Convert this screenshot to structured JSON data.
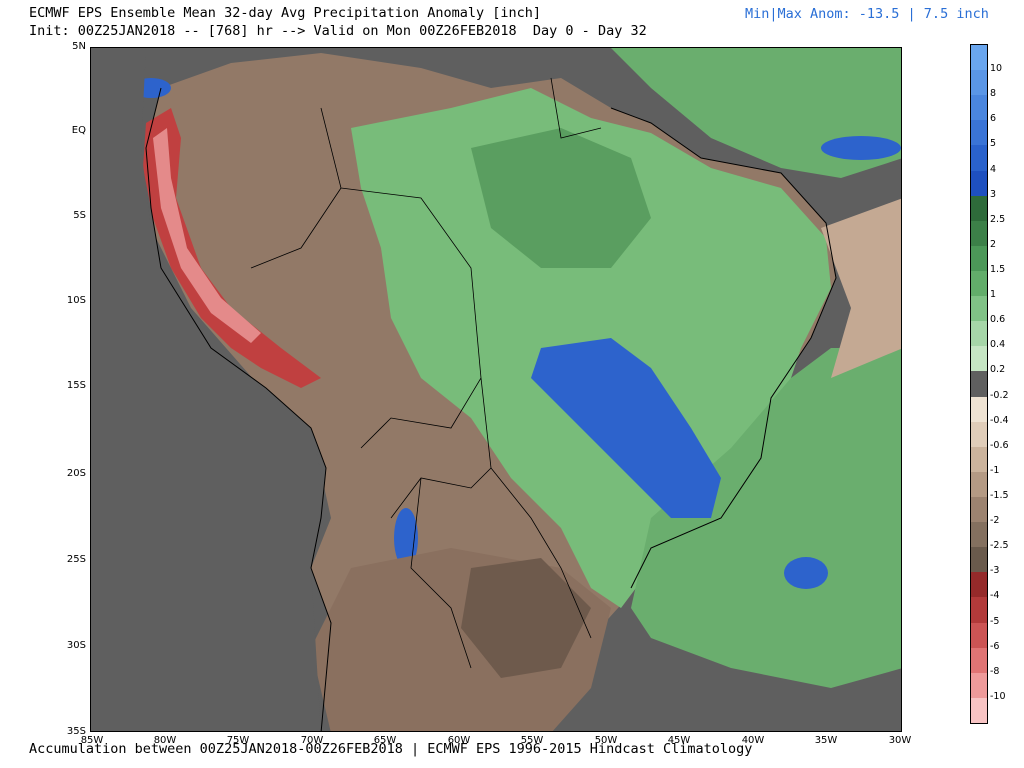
{
  "header": {
    "title": "ECMWF EPS Ensemble Mean 32-day Avg Precipitation Anomaly [inch]",
    "init": "Init: 00Z25JAN2018 -- [768] hr --> Valid on Mon 00Z26FEB2018  Day 0 - Day 32",
    "minmax": "Min|Max Anom: -13.5 | 7.5 inch"
  },
  "footer": "Accumulation between 00Z25JAN2018-00Z26FEB2018 | ECMWF EPS 1996-2015 Hindcast Climatology",
  "lat_labels": [
    "5N",
    "EQ",
    "5S",
    "10S",
    "15S",
    "20S",
    "25S",
    "30S",
    "35S"
  ],
  "lon_labels": [
    "85W",
    "80W",
    "75W",
    "70W",
    "65W",
    "60W",
    "55W",
    "50W",
    "45W",
    "40W",
    "35W",
    "30W"
  ],
  "colorbar": {
    "labels": [
      "10",
      "8",
      "6",
      "5",
      "4",
      "3",
      "2.5",
      "2",
      "1.5",
      "1",
      "0.6",
      "0.4",
      "0.2",
      "-0.2",
      "-0.4",
      "-0.6",
      "-1",
      "-1.5",
      "-2",
      "-2.5",
      "-3",
      "-4",
      "-5",
      "-6",
      "-8",
      "-10"
    ],
    "colors": [
      "#6aa6ee",
      "#5a96e6",
      "#4a86de",
      "#3a74d6",
      "#2a62cc",
      "#1e50c0",
      "#2e6b3a",
      "#3c8048",
      "#4c9858",
      "#62ad6a",
      "#80c286",
      "#a6d6a8",
      "#c6e6c4",
      "#5f5f5f",
      "#efe3d3",
      "#e0cdb9",
      "#cbb39c",
      "#b49a84",
      "#9c8370",
      "#84705f",
      "#6a5a4c",
      "#952a2a",
      "#b23a3a",
      "#cc5454",
      "#e07474",
      "#ee9a9a",
      "#f8c4c4"
    ]
  }
}
